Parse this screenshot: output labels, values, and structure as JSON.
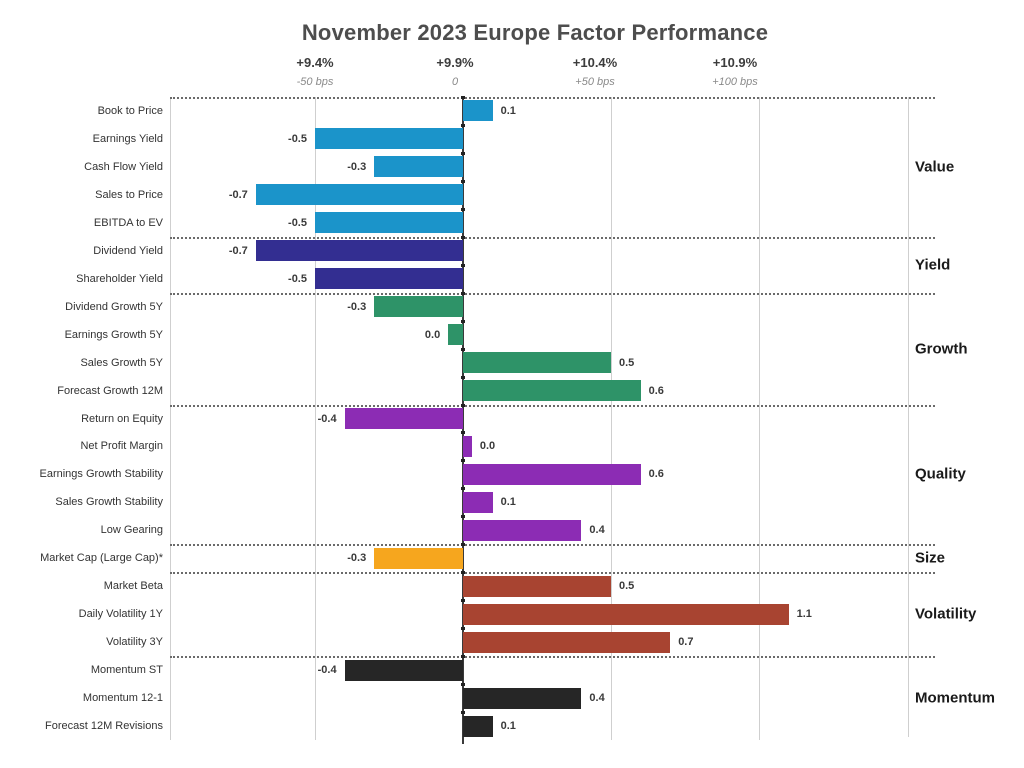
{
  "chart_data": {
    "type": "bar",
    "orientation": "horizontal",
    "title": "November 2023 Europe Factor Performance",
    "x_axis": {
      "unit_note": "bar values in % where 0.5 = +50 bps",
      "range": [
        -0.75,
        1.55
      ],
      "ticks": [
        {
          "pct": "+9.4%",
          "bps": "-50 bps",
          "value": -0.5
        },
        {
          "pct": "+9.9%",
          "bps": "0",
          "value": 0
        },
        {
          "pct": "+10.4%",
          "bps": "+50 bps",
          "value": 0.5
        },
        {
          "pct": "+10.9%",
          "bps": "+100 bps",
          "value": 1.0
        }
      ]
    },
    "legend_position": "right",
    "grid": "vertical-light-gray, dotted group separators",
    "groups": [
      {
        "name": "Value",
        "color": "#1b94ca",
        "rows": [
          {
            "label": "Book to Price",
            "value": 0.1,
            "display": "0.1"
          },
          {
            "label": "Earnings Yield",
            "value": -0.5,
            "display": "-0.5"
          },
          {
            "label": "Cash Flow Yield",
            "value": -0.3,
            "display": "-0.3"
          },
          {
            "label": "Sales to Price",
            "value": -0.7,
            "display": "-0.7"
          },
          {
            "label": "EBITDA to EV",
            "value": -0.5,
            "display": "-0.5"
          }
        ]
      },
      {
        "name": "Yield",
        "color": "#332e91",
        "rows": [
          {
            "label": "Dividend Yield",
            "value": -0.7,
            "display": "-0.7"
          },
          {
            "label": "Shareholder Yield",
            "value": -0.5,
            "display": "-0.5"
          }
        ]
      },
      {
        "name": "Growth",
        "color": "#2e9368",
        "rows": [
          {
            "label": "Dividend Growth 5Y",
            "value": -0.3,
            "display": "-0.3"
          },
          {
            "label": "Earnings Growth 5Y",
            "value": 0.0,
            "display": "0.0",
            "bar_value": -0.05
          },
          {
            "label": "Sales Growth 5Y",
            "value": 0.5,
            "display": "0.5"
          },
          {
            "label": "Forecast Growth 12M",
            "value": 0.6,
            "display": "0.6"
          }
        ]
      },
      {
        "name": "Quality",
        "color": "#8c2cb4",
        "rows": [
          {
            "label": "Return on Equity",
            "value": -0.4,
            "display": "-0.4"
          },
          {
            "label": "Net Profit Margin",
            "value": 0.0,
            "display": "0.0",
            "bar_value": 0.03
          },
          {
            "label": "Earnings Growth Stability",
            "value": 0.6,
            "display": "0.6"
          },
          {
            "label": "Sales Growth Stability",
            "value": 0.1,
            "display": "0.1"
          },
          {
            "label": "Low Gearing",
            "value": 0.4,
            "display": "0.4"
          }
        ]
      },
      {
        "name": "Size",
        "color": "#f6a61e",
        "rows": [
          {
            "label": "Market Cap (Large Cap)*",
            "value": -0.3,
            "display": "-0.3"
          }
        ]
      },
      {
        "name": "Volatility",
        "color": "#a84431",
        "rows": [
          {
            "label": "Market Beta",
            "value": 0.5,
            "display": "0.5"
          },
          {
            "label": "Daily Volatility 1Y",
            "value": 1.1,
            "display": "1.1"
          },
          {
            "label": "Volatility 3Y",
            "value": 0.7,
            "display": "0.7"
          }
        ]
      },
      {
        "name": "Momentum",
        "color": "#262626",
        "rows": [
          {
            "label": "Momentum ST",
            "value": -0.4,
            "display": "-0.4"
          },
          {
            "label": "Momentum 12-1",
            "value": 0.4,
            "display": "0.4"
          },
          {
            "label": "Forecast 12M Revisions",
            "value": 0.1,
            "display": "0.1"
          }
        ]
      }
    ]
  }
}
